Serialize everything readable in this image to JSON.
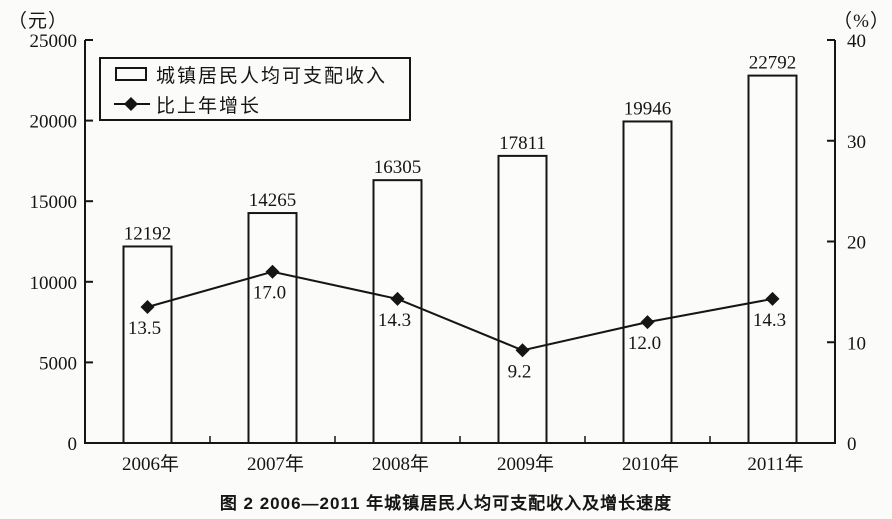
{
  "chart_data": {
    "type": "bar",
    "title": "图 2  2006—2011 年城镇居民人均可支配收入及增长速度",
    "categories": [
      "2006年",
      "2007年",
      "2008年",
      "2009年",
      "2010年",
      "2011年"
    ],
    "series": [
      {
        "name": "城镇居民人均可支配收入",
        "type": "bar",
        "axis": "left",
        "values": [
          12192,
          14265,
          16305,
          17811,
          19946,
          22792
        ],
        "labels": [
          "12192",
          "14265",
          "16305",
          "17811",
          "19946",
          "22792"
        ]
      },
      {
        "name": "比上年增长",
        "type": "line",
        "axis": "right",
        "values": [
          13.5,
          17.0,
          14.3,
          9.2,
          12.0,
          14.3
        ],
        "labels": [
          "13.5",
          "17.0",
          "14.3",
          "9.2",
          "12.0",
          "14.3"
        ]
      }
    ],
    "left_axis": {
      "unit": "（元）",
      "ticks": [
        0,
        5000,
        10000,
        15000,
        20000,
        25000
      ],
      "tick_labels": [
        "0",
        "5000",
        "10000",
        "15000",
        "20000",
        "25000"
      ],
      "min": 0,
      "max": 25000
    },
    "right_axis": {
      "unit": "（%）",
      "ticks": [
        0,
        10,
        20,
        30,
        40
      ],
      "tick_labels": [
        "0",
        "10",
        "20",
        "30",
        "40"
      ],
      "min": 0,
      "max": 40
    },
    "legend_position": "top-left-inside",
    "grid": false
  },
  "colors": {
    "ink": "#151515",
    "background": "#fbfbf9",
    "bar_fill": "#fcfcfa"
  }
}
